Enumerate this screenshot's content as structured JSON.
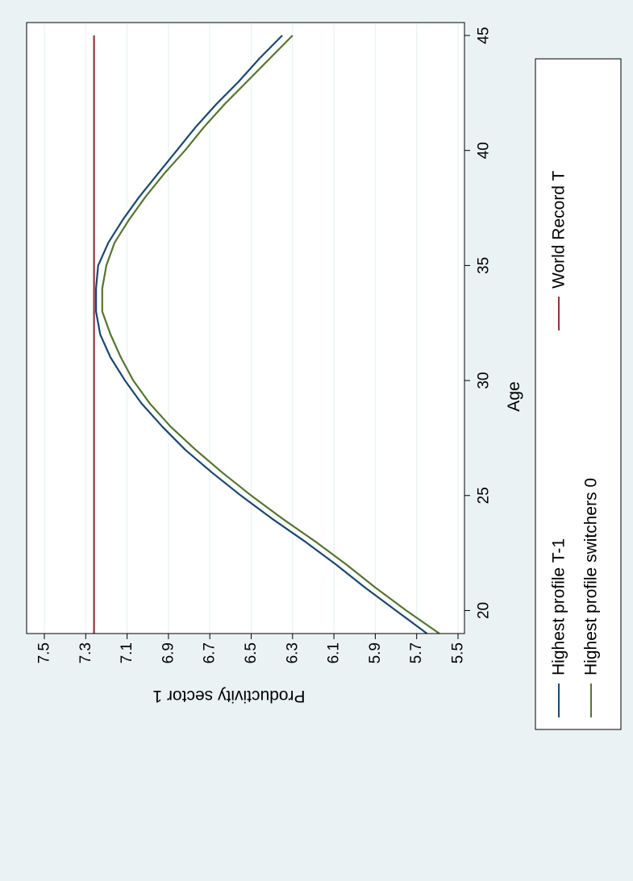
{
  "chart_data": {
    "type": "line",
    "orientation": "rotated-90-cw",
    "xlabel": "Age",
    "ylabel": "Productivity sector 1",
    "xlim": [
      19,
      45
    ],
    "ylim": [
      5.5,
      7.5
    ],
    "x_ticks": [
      20,
      25,
      30,
      35,
      40,
      45
    ],
    "x_tick_labels": [
      "20",
      "25",
      "30",
      "35",
      "40",
      "45"
    ],
    "y_ticks": [
      5.5,
      5.7,
      5.9,
      6.1,
      6.3,
      6.5,
      6.7,
      6.9,
      7.1,
      7.3,
      7.5
    ],
    "y_tick_labels": [
      "5.5",
      "5.7",
      "5.9",
      "6.1",
      "6.3",
      "6.5",
      "6.7",
      "6.9",
      "7.1",
      "7.3",
      "7.5"
    ],
    "grid": true,
    "legend_position": "bottom",
    "series": [
      {
        "name": "Highest profile T-1",
        "color": "#1a476f",
        "x": [
          19,
          20,
          21,
          22,
          23,
          24,
          25,
          26,
          27,
          28,
          29,
          30,
          31,
          32,
          33,
          34,
          35,
          36,
          37,
          38,
          39,
          40,
          41,
          42,
          43,
          44,
          45
        ],
        "y": [
          5.65,
          5.8,
          5.95,
          6.09,
          6.24,
          6.4,
          6.55,
          6.69,
          6.82,
          6.93,
          7.03,
          7.11,
          7.18,
          7.23,
          7.25,
          7.25,
          7.24,
          7.19,
          7.12,
          7.04,
          6.95,
          6.86,
          6.77,
          6.67,
          6.56,
          6.46,
          6.35
        ]
      },
      {
        "name": "Highest profile switchers 0",
        "color": "#55752f",
        "x": [
          19,
          20,
          21,
          22,
          23,
          24,
          25,
          26,
          27,
          28,
          29,
          30,
          31,
          32,
          33,
          34,
          35,
          36,
          37,
          38,
          39,
          40,
          41,
          42,
          43,
          44,
          45
        ],
        "y": [
          5.59,
          5.75,
          5.9,
          6.04,
          6.19,
          6.35,
          6.5,
          6.64,
          6.77,
          6.89,
          6.99,
          7.07,
          7.13,
          7.18,
          7.22,
          7.22,
          7.2,
          7.16,
          7.09,
          7.01,
          6.92,
          6.82,
          6.73,
          6.63,
          6.52,
          6.41,
          6.3
        ]
      },
      {
        "name": "World Record T",
        "color": "#90353b",
        "x": [
          19,
          45
        ],
        "y": [
          7.26,
          7.26
        ]
      }
    ],
    "legend": [
      {
        "label": "Highest profile T-1",
        "color": "#1a476f"
      },
      {
        "label": "Highest profile switchers 0",
        "color": "#55752f"
      },
      {
        "label": "World Record T",
        "color": "#90353b"
      }
    ]
  }
}
